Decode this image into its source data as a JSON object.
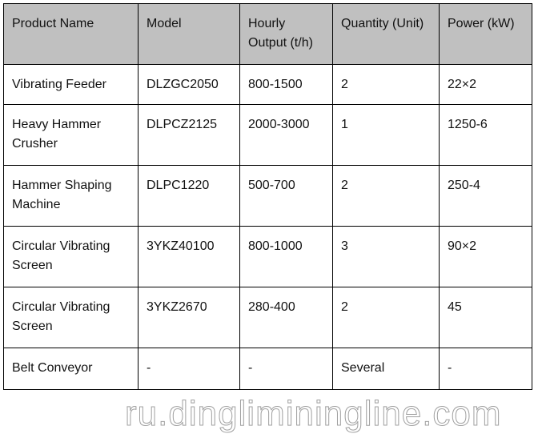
{
  "table": {
    "headers": [
      "Product Name",
      "Model",
      "Hourly Output (t/h)",
      "Quantity (Unit)",
      "Power (kW)"
    ],
    "rows": [
      [
        "Vibrating Feeder",
        "DLZGC2050",
        "800-1500",
        "2",
        "22×2"
      ],
      [
        "Heavy Hammer Crusher",
        "DLPCZ2125",
        "2000-3000",
        "1",
        "1250-6"
      ],
      [
        "Hammer Shaping Machine",
        "DLPC1220",
        "500-700",
        "2",
        "250-4"
      ],
      [
        "Circular Vibrating Screen",
        "3YKZ40100",
        "800-1000",
        "3",
        "90×2"
      ],
      [
        "Circular Vibrating Screen",
        "3YKZ2670",
        "280-400",
        "2",
        "45"
      ],
      [
        "Belt Conveyor",
        "-",
        "-",
        "Several",
        "-"
      ]
    ]
  },
  "watermark": "ru.dingliminingline.com",
  "colors": {
    "header_bg": "#c0c0c0",
    "border": "#000000"
  }
}
